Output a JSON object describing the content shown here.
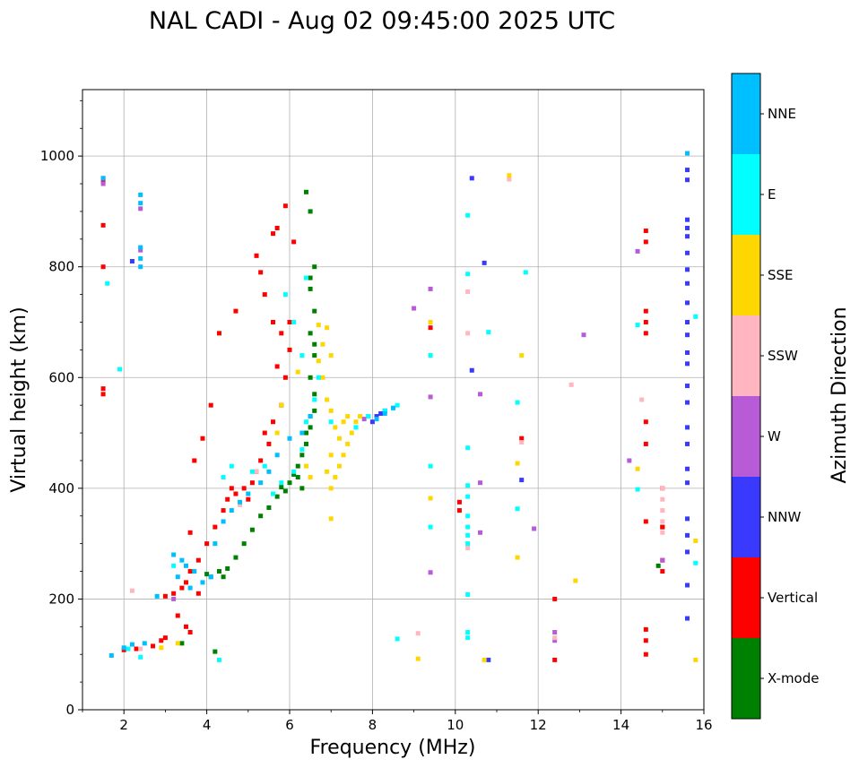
{
  "chart_data": {
    "type": "scatter",
    "title": "NAL CADI - Aug 02 09:45:00 2025 UTC",
    "xlabel": "Frequency (MHz)",
    "ylabel": "Virtual height (km)",
    "xlim": [
      1,
      16
    ],
    "ylim": [
      0,
      1120
    ],
    "grid": true,
    "x_ticks": [
      "2",
      "4",
      "6",
      "8",
      "10",
      "12",
      "14",
      "16"
    ],
    "y_ticks": [
      "0",
      "200",
      "400",
      "600",
      "800",
      "1000"
    ],
    "colorbar": {
      "label": "Azimuth Direction",
      "categories": [
        "X-mode",
        "Vertical",
        "NNW",
        "W",
        "SSW",
        "SSE",
        "E",
        "NNE"
      ],
      "colors": [
        "#008000",
        "#ff0000",
        "#3a3aff",
        "#b75bd6",
        "#ffb6c1",
        "#ffd700",
        "#00ffff",
        "#00bfff"
      ]
    },
    "series": [
      {
        "name": "X-mode",
        "points": [
          [
            4.2,
            105
          ],
          [
            4.4,
            240
          ],
          [
            4.5,
            255
          ],
          [
            4.7,
            275
          ],
          [
            4.9,
            300
          ],
          [
            5.1,
            325
          ],
          [
            5.3,
            350
          ],
          [
            5.5,
            365
          ],
          [
            5.7,
            385
          ],
          [
            5.9,
            395
          ],
          [
            6.0,
            410
          ],
          [
            6.1,
            425
          ],
          [
            6.2,
            440
          ],
          [
            6.3,
            460
          ],
          [
            6.4,
            480
          ],
          [
            6.5,
            510
          ],
          [
            6.6,
            540
          ],
          [
            6.6,
            570
          ],
          [
            6.5,
            600
          ],
          [
            6.6,
            640
          ],
          [
            6.5,
            680
          ],
          [
            6.6,
            720
          ],
          [
            6.5,
            760
          ],
          [
            6.6,
            800
          ],
          [
            6.4,
            935
          ],
          [
            6.5,
            900
          ],
          [
            4.0,
            245
          ],
          [
            4.1,
            240
          ],
          [
            4.3,
            250
          ],
          [
            5.8,
            402
          ],
          [
            6.2,
            420
          ],
          [
            6.3,
            400
          ],
          [
            6.4,
            500
          ],
          [
            6.5,
            530
          ],
          [
            6.6,
            660
          ],
          [
            6.5,
            780
          ],
          [
            3.4,
            120
          ],
          [
            14.9,
            260
          ],
          [
            15.0,
            330
          ]
        ]
      },
      {
        "name": "Vertical",
        "points": [
          [
            1.5,
            955
          ],
          [
            1.5,
            875
          ],
          [
            1.5,
            800
          ],
          [
            1.5,
            580
          ],
          [
            1.5,
            570
          ],
          [
            2.0,
            108
          ],
          [
            2.3,
            110
          ],
          [
            2.7,
            115
          ],
          [
            2.9,
            125
          ],
          [
            3.0,
            130
          ],
          [
            3.0,
            205
          ],
          [
            3.2,
            210
          ],
          [
            3.4,
            220
          ],
          [
            3.5,
            230
          ],
          [
            3.6,
            250
          ],
          [
            3.8,
            270
          ],
          [
            4.0,
            300
          ],
          [
            4.2,
            330
          ],
          [
            4.4,
            360
          ],
          [
            4.5,
            380
          ],
          [
            4.7,
            390
          ],
          [
            4.9,
            400
          ],
          [
            5.1,
            410
          ],
          [
            5.3,
            450
          ],
          [
            5.5,
            480
          ],
          [
            5.6,
            520
          ],
          [
            5.8,
            550
          ],
          [
            5.9,
            600
          ],
          [
            6.0,
            650
          ],
          [
            5.8,
            680
          ],
          [
            5.6,
            700
          ],
          [
            5.4,
            750
          ],
          [
            5.3,
            790
          ],
          [
            5.2,
            820
          ],
          [
            5.6,
            860
          ],
          [
            5.7,
            870
          ],
          [
            6.1,
            845
          ],
          [
            5.9,
            910
          ],
          [
            4.1,
            550
          ],
          [
            3.9,
            490
          ],
          [
            3.7,
            450
          ],
          [
            4.3,
            680
          ],
          [
            4.7,
            720
          ],
          [
            3.3,
            170
          ],
          [
            3.5,
            150
          ],
          [
            3.6,
            140
          ],
          [
            12.4,
            90
          ],
          [
            12.4,
            200
          ],
          [
            14.6,
            100
          ],
          [
            14.6,
            125
          ],
          [
            14.6,
            145
          ],
          [
            14.6,
            340
          ],
          [
            14.6,
            480
          ],
          [
            14.6,
            520
          ],
          [
            14.6,
            680
          ],
          [
            14.6,
            700
          ],
          [
            14.6,
            720
          ],
          [
            14.6,
            845
          ],
          [
            14.6,
            865
          ],
          [
            15.0,
            250
          ],
          [
            15.0,
            270
          ],
          [
            15.0,
            330
          ],
          [
            15.0,
            400
          ],
          [
            10.1,
            375
          ],
          [
            10.1,
            360
          ],
          [
            9.4,
            690
          ],
          [
            11.6,
            490
          ],
          [
            3.6,
            320
          ],
          [
            3.8,
            210
          ],
          [
            4.6,
            400
          ],
          [
            5.0,
            380
          ],
          [
            5.2,
            430
          ],
          [
            5.4,
            500
          ],
          [
            5.7,
            620
          ],
          [
            6.0,
            700
          ]
        ]
      },
      {
        "name": "NNW",
        "points": [
          [
            10.4,
            960
          ],
          [
            10.4,
            613
          ],
          [
            10.7,
            807
          ],
          [
            10.8,
            90
          ],
          [
            11.6,
            415
          ],
          [
            15.6,
            165
          ],
          [
            15.6,
            225
          ],
          [
            15.6,
            285
          ],
          [
            15.6,
            315
          ],
          [
            15.6,
            345
          ],
          [
            15.6,
            410
          ],
          [
            15.6,
            435
          ],
          [
            15.6,
            480
          ],
          [
            15.6,
            510
          ],
          [
            15.6,
            555
          ],
          [
            15.6,
            585
          ],
          [
            15.6,
            625
          ],
          [
            15.6,
            645
          ],
          [
            15.6,
            677
          ],
          [
            15.6,
            700
          ],
          [
            15.6,
            735
          ],
          [
            15.6,
            770
          ],
          [
            15.6,
            795
          ],
          [
            15.6,
            825
          ],
          [
            15.6,
            855
          ],
          [
            15.6,
            885
          ],
          [
            15.6,
            870
          ],
          [
            15.6,
            957
          ],
          [
            15.6,
            975
          ],
          [
            8.0,
            520
          ],
          [
            8.1,
            530
          ],
          [
            8.2,
            535
          ],
          [
            8.3,
            540
          ],
          [
            2.2,
            810
          ]
        ]
      },
      {
        "name": "W",
        "points": [
          [
            9.4,
            760
          ],
          [
            9.4,
            565
          ],
          [
            9.4,
            248
          ],
          [
            9.0,
            725
          ],
          [
            10.6,
            570
          ],
          [
            10.6,
            410
          ],
          [
            10.6,
            320
          ],
          [
            11.9,
            327
          ],
          [
            12.4,
            140
          ],
          [
            12.4,
            125
          ],
          [
            13.1,
            677
          ],
          [
            14.2,
            450
          ],
          [
            14.4,
            828
          ],
          [
            15.0,
            270
          ],
          [
            1.5,
            960
          ],
          [
            1.5,
            950
          ],
          [
            2.4,
            905
          ],
          [
            2.4,
            830
          ],
          [
            7.8,
            525
          ],
          [
            7.9,
            530
          ],
          [
            3.2,
            200
          ]
        ]
      },
      {
        "name": "SSW",
        "points": [
          [
            2.2,
            215
          ],
          [
            2.4,
            110
          ],
          [
            9.1,
            138
          ],
          [
            10.3,
            755
          ],
          [
            10.3,
            680
          ],
          [
            10.3,
            292
          ],
          [
            11.3,
            958
          ],
          [
            11.6,
            483
          ],
          [
            12.8,
            587
          ],
          [
            14.5,
            560
          ],
          [
            15.0,
            320
          ],
          [
            15.0,
            340
          ],
          [
            15.0,
            360
          ],
          [
            15.0,
            380
          ],
          [
            15.0,
            400
          ],
          [
            12.4,
            130
          ],
          [
            5.2,
            430
          ],
          [
            4.8,
            370
          ]
        ]
      },
      {
        "name": "SSE",
        "points": [
          [
            7.0,
            400
          ],
          [
            7.1,
            420
          ],
          [
            7.2,
            440
          ],
          [
            7.3,
            460
          ],
          [
            7.4,
            480
          ],
          [
            7.5,
            500
          ],
          [
            7.6,
            520
          ],
          [
            7.7,
            530
          ],
          [
            6.8,
            600
          ],
          [
            6.7,
            630
          ],
          [
            6.8,
            660
          ],
          [
            6.9,
            690
          ],
          [
            7.0,
            640
          ],
          [
            6.9,
            560
          ],
          [
            7.0,
            540
          ],
          [
            7.1,
            510
          ],
          [
            7.2,
            490
          ],
          [
            7.0,
            460
          ],
          [
            6.9,
            430
          ],
          [
            7.3,
            520
          ],
          [
            7.4,
            530
          ],
          [
            7.0,
            345
          ],
          [
            9.1,
            92
          ],
          [
            9.4,
            700
          ],
          [
            9.4,
            382
          ],
          [
            10.7,
            90
          ],
          [
            11.3,
            965
          ],
          [
            11.5,
            445
          ],
          [
            11.5,
            275
          ],
          [
            11.6,
            640
          ],
          [
            12.9,
            233
          ],
          [
            15.8,
            305
          ],
          [
            15.8,
            90
          ],
          [
            6.5,
            420
          ],
          [
            6.4,
            440
          ],
          [
            6.7,
            695
          ],
          [
            14.4,
            435
          ],
          [
            5.8,
            550
          ],
          [
            5.7,
            500
          ],
          [
            3.3,
            120
          ],
          [
            2.9,
            112
          ],
          [
            6.2,
            610
          ]
        ]
      },
      {
        "name": "E",
        "points": [
          [
            1.6,
            770
          ],
          [
            1.9,
            615
          ],
          [
            2.1,
            110
          ],
          [
            2.4,
            95
          ],
          [
            4.3,
            90
          ],
          [
            5.4,
            440
          ],
          [
            5.6,
            390
          ],
          [
            5.8,
            410
          ],
          [
            6.1,
            430
          ],
          [
            6.3,
            470
          ],
          [
            6.4,
            520
          ],
          [
            6.6,
            560
          ],
          [
            6.7,
            600
          ],
          [
            6.3,
            640
          ],
          [
            6.1,
            700
          ],
          [
            5.9,
            750
          ],
          [
            6.4,
            780
          ],
          [
            7.0,
            520
          ],
          [
            7.6,
            510
          ],
          [
            7.9,
            530
          ],
          [
            8.3,
            540
          ],
          [
            8.5,
            545
          ],
          [
            8.6,
            550
          ],
          [
            9.4,
            440
          ],
          [
            9.4,
            640
          ],
          [
            9.4,
            330
          ],
          [
            8.6,
            128
          ],
          [
            10.3,
            893
          ],
          [
            10.3,
            787
          ],
          [
            10.3,
            405
          ],
          [
            10.3,
            385
          ],
          [
            10.3,
            350
          ],
          [
            10.3,
            330
          ],
          [
            10.3,
            315
          ],
          [
            10.3,
            300
          ],
          [
            10.3,
            208
          ],
          [
            10.3,
            140
          ],
          [
            10.3,
            130
          ],
          [
            10.3,
            473
          ],
          [
            10.8,
            682
          ],
          [
            11.5,
            555
          ],
          [
            11.5,
            363
          ],
          [
            11.7,
            790
          ],
          [
            14.4,
            695
          ],
          [
            14.4,
            398
          ],
          [
            15.8,
            265
          ],
          [
            15.8,
            710
          ],
          [
            3.2,
            260
          ],
          [
            4.4,
            420
          ],
          [
            4.6,
            440
          ],
          [
            5.1,
            430
          ]
        ]
      },
      {
        "name": "NNE",
        "points": [
          [
            1.5,
            960
          ],
          [
            2.4,
            930
          ],
          [
            2.4,
            915
          ],
          [
            2.4,
            835
          ],
          [
            2.4,
            815
          ],
          [
            2.4,
            800
          ],
          [
            2.0,
            112
          ],
          [
            2.2,
            118
          ],
          [
            2.5,
            120
          ],
          [
            3.2,
            280
          ],
          [
            3.4,
            270
          ],
          [
            3.5,
            260
          ],
          [
            3.7,
            250
          ],
          [
            3.9,
            230
          ],
          [
            4.2,
            300
          ],
          [
            4.4,
            340
          ],
          [
            4.6,
            360
          ],
          [
            4.8,
            375
          ],
          [
            5.0,
            390
          ],
          [
            5.3,
            410
          ],
          [
            5.5,
            430
          ],
          [
            5.7,
            460
          ],
          [
            6.0,
            490
          ],
          [
            6.3,
            500
          ],
          [
            6.5,
            530
          ],
          [
            8.1,
            525
          ],
          [
            8.3,
            535
          ],
          [
            8.5,
            545
          ],
          [
            15.6,
            1005
          ],
          [
            4.1,
            240
          ],
          [
            3.6,
            220
          ],
          [
            2.8,
            205
          ],
          [
            3.3,
            240
          ],
          [
            1.7,
            98
          ]
        ]
      }
    ]
  }
}
